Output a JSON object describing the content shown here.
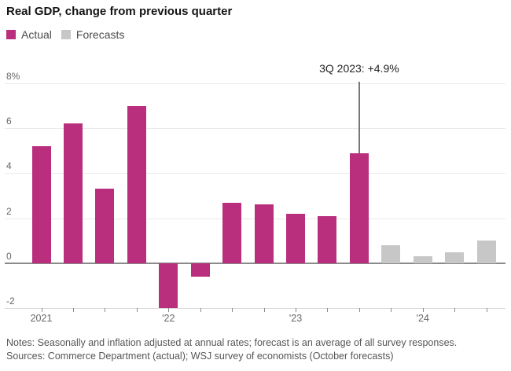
{
  "header": {
    "title": "Real GDP, change from previous quarter"
  },
  "legend": {
    "items": [
      {
        "label": "Actual",
        "color": "#ba2f7d"
      },
      {
        "label": "Forecasts",
        "color": "#c7c7c7"
      }
    ]
  },
  "chart_data": {
    "type": "bar",
    "title": "Real GDP, change from previous quarter",
    "categories": [
      "1Q 2021",
      "2Q 2021",
      "3Q 2021",
      "4Q 2021",
      "1Q 2022",
      "2Q 2022",
      "3Q 2022",
      "4Q 2022",
      "1Q 2023",
      "2Q 2023",
      "3Q 2023",
      "4Q 2023",
      "1Q 2024",
      "2Q 2024",
      "3Q 2024"
    ],
    "series": [
      {
        "name": "Actual",
        "color": "#ba2f7d",
        "values": [
          5.2,
          6.2,
          3.3,
          7.0,
          -2.0,
          -0.6,
          2.7,
          2.6,
          2.2,
          2.1,
          4.9,
          null,
          null,
          null,
          null
        ]
      },
      {
        "name": "Forecasts",
        "color": "#c7c7c7",
        "values": [
          null,
          null,
          null,
          null,
          null,
          null,
          null,
          null,
          null,
          null,
          null,
          0.8,
          0.3,
          0.5,
          1.0
        ]
      }
    ],
    "ylim": [
      -2,
      8
    ],
    "y_unit": "%",
    "yticks": [
      8,
      6,
      4,
      2,
      0,
      -2
    ],
    "ytick_labels": [
      "8%",
      "6",
      "4",
      "2",
      "0",
      "-2"
    ],
    "x_year_labels": [
      {
        "label": "2021",
        "index": 0
      },
      {
        "label": "'22",
        "index": 4
      },
      {
        "label": "'23",
        "index": 8
      },
      {
        "label": "'24",
        "index": 12
      }
    ],
    "annotation": {
      "text": "3Q 2023: +4.9%",
      "category": "3Q 2023",
      "value": 4.9
    },
    "grid": "horizontal-only",
    "legend_position": "top-left"
  },
  "footer": {
    "notes": "Notes: Seasonally and inflation adjusted at annual rates; forecast is an average of all survey responses.",
    "sources": "Sources: Commerce Department (actual); WSJ survey of economists (October forecasts)"
  }
}
